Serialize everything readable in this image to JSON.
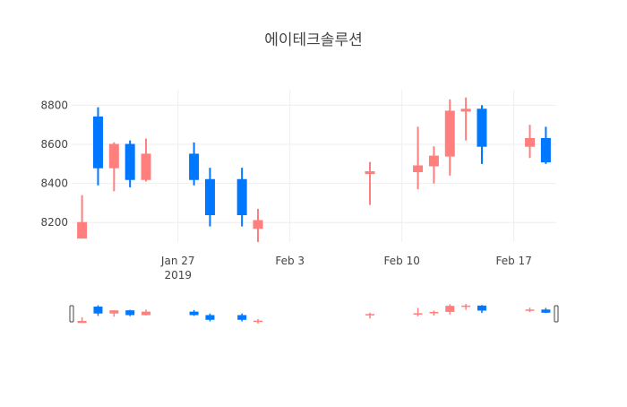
{
  "chart_data": {
    "type": "candlestick",
    "title": "에이테크솔루션",
    "xlabel": "",
    "ylabel": "",
    "ylim": [
      8100,
      8880
    ],
    "y_ticks": [
      8200,
      8400,
      8600,
      8800
    ],
    "x_ticks": [
      {
        "date": "2019-01-27",
        "label": "Jan 27",
        "sublabel": "2019"
      },
      {
        "date": "2019-02-03",
        "label": "Feb 3",
        "sublabel": ""
      },
      {
        "date": "2019-02-10",
        "label": "Feb 10",
        "sublabel": ""
      },
      {
        "date": "2019-02-17",
        "label": "Feb 17",
        "sublabel": ""
      }
    ],
    "x_range": [
      "2019-01-20",
      "2019-02-19"
    ],
    "grid": true,
    "rangeslider": true,
    "increasing_color": "#ff7f7f",
    "decreasing_color": "#0077ff",
    "candles": [
      {
        "date": "2019-01-21",
        "open": 8120,
        "high": 8340,
        "low": 8120,
        "close": 8200
      },
      {
        "date": "2019-01-22",
        "open": 8740,
        "high": 8790,
        "low": 8390,
        "close": 8480
      },
      {
        "date": "2019-01-23",
        "open": 8480,
        "high": 8610,
        "low": 8360,
        "close": 8600
      },
      {
        "date": "2019-01-24",
        "open": 8600,
        "high": 8620,
        "low": 8380,
        "close": 8420
      },
      {
        "date": "2019-01-25",
        "open": 8420,
        "high": 8630,
        "low": 8410,
        "close": 8550
      },
      {
        "date": "2019-01-28",
        "open": 8550,
        "high": 8610,
        "low": 8390,
        "close": 8420
      },
      {
        "date": "2019-01-29",
        "open": 8420,
        "high": 8480,
        "low": 8180,
        "close": 8240
      },
      {
        "date": "2019-01-31",
        "open": 8420,
        "high": 8480,
        "low": 8180,
        "close": 8240
      },
      {
        "date": "2019-02-01",
        "open": 8170,
        "high": 8270,
        "low": 8100,
        "close": 8210
      },
      {
        "date": "2019-02-08",
        "open": 8450,
        "high": 8510,
        "low": 8290,
        "close": 8460
      },
      {
        "date": "2019-02-11",
        "open": 8460,
        "high": 8690,
        "low": 8370,
        "close": 8490
      },
      {
        "date": "2019-02-12",
        "open": 8490,
        "high": 8590,
        "low": 8400,
        "close": 8540
      },
      {
        "date": "2019-02-13",
        "open": 8540,
        "high": 8830,
        "low": 8440,
        "close": 8770
      },
      {
        "date": "2019-02-14",
        "open": 8770,
        "high": 8840,
        "low": 8620,
        "close": 8780
      },
      {
        "date": "2019-02-15",
        "open": 8780,
        "high": 8800,
        "low": 8500,
        "close": 8590
      },
      {
        "date": "2019-02-18",
        "open": 8590,
        "high": 8700,
        "low": 8530,
        "close": 8630
      },
      {
        "date": "2019-02-19",
        "open": 8630,
        "high": 8690,
        "low": 8500,
        "close": 8510
      }
    ]
  }
}
